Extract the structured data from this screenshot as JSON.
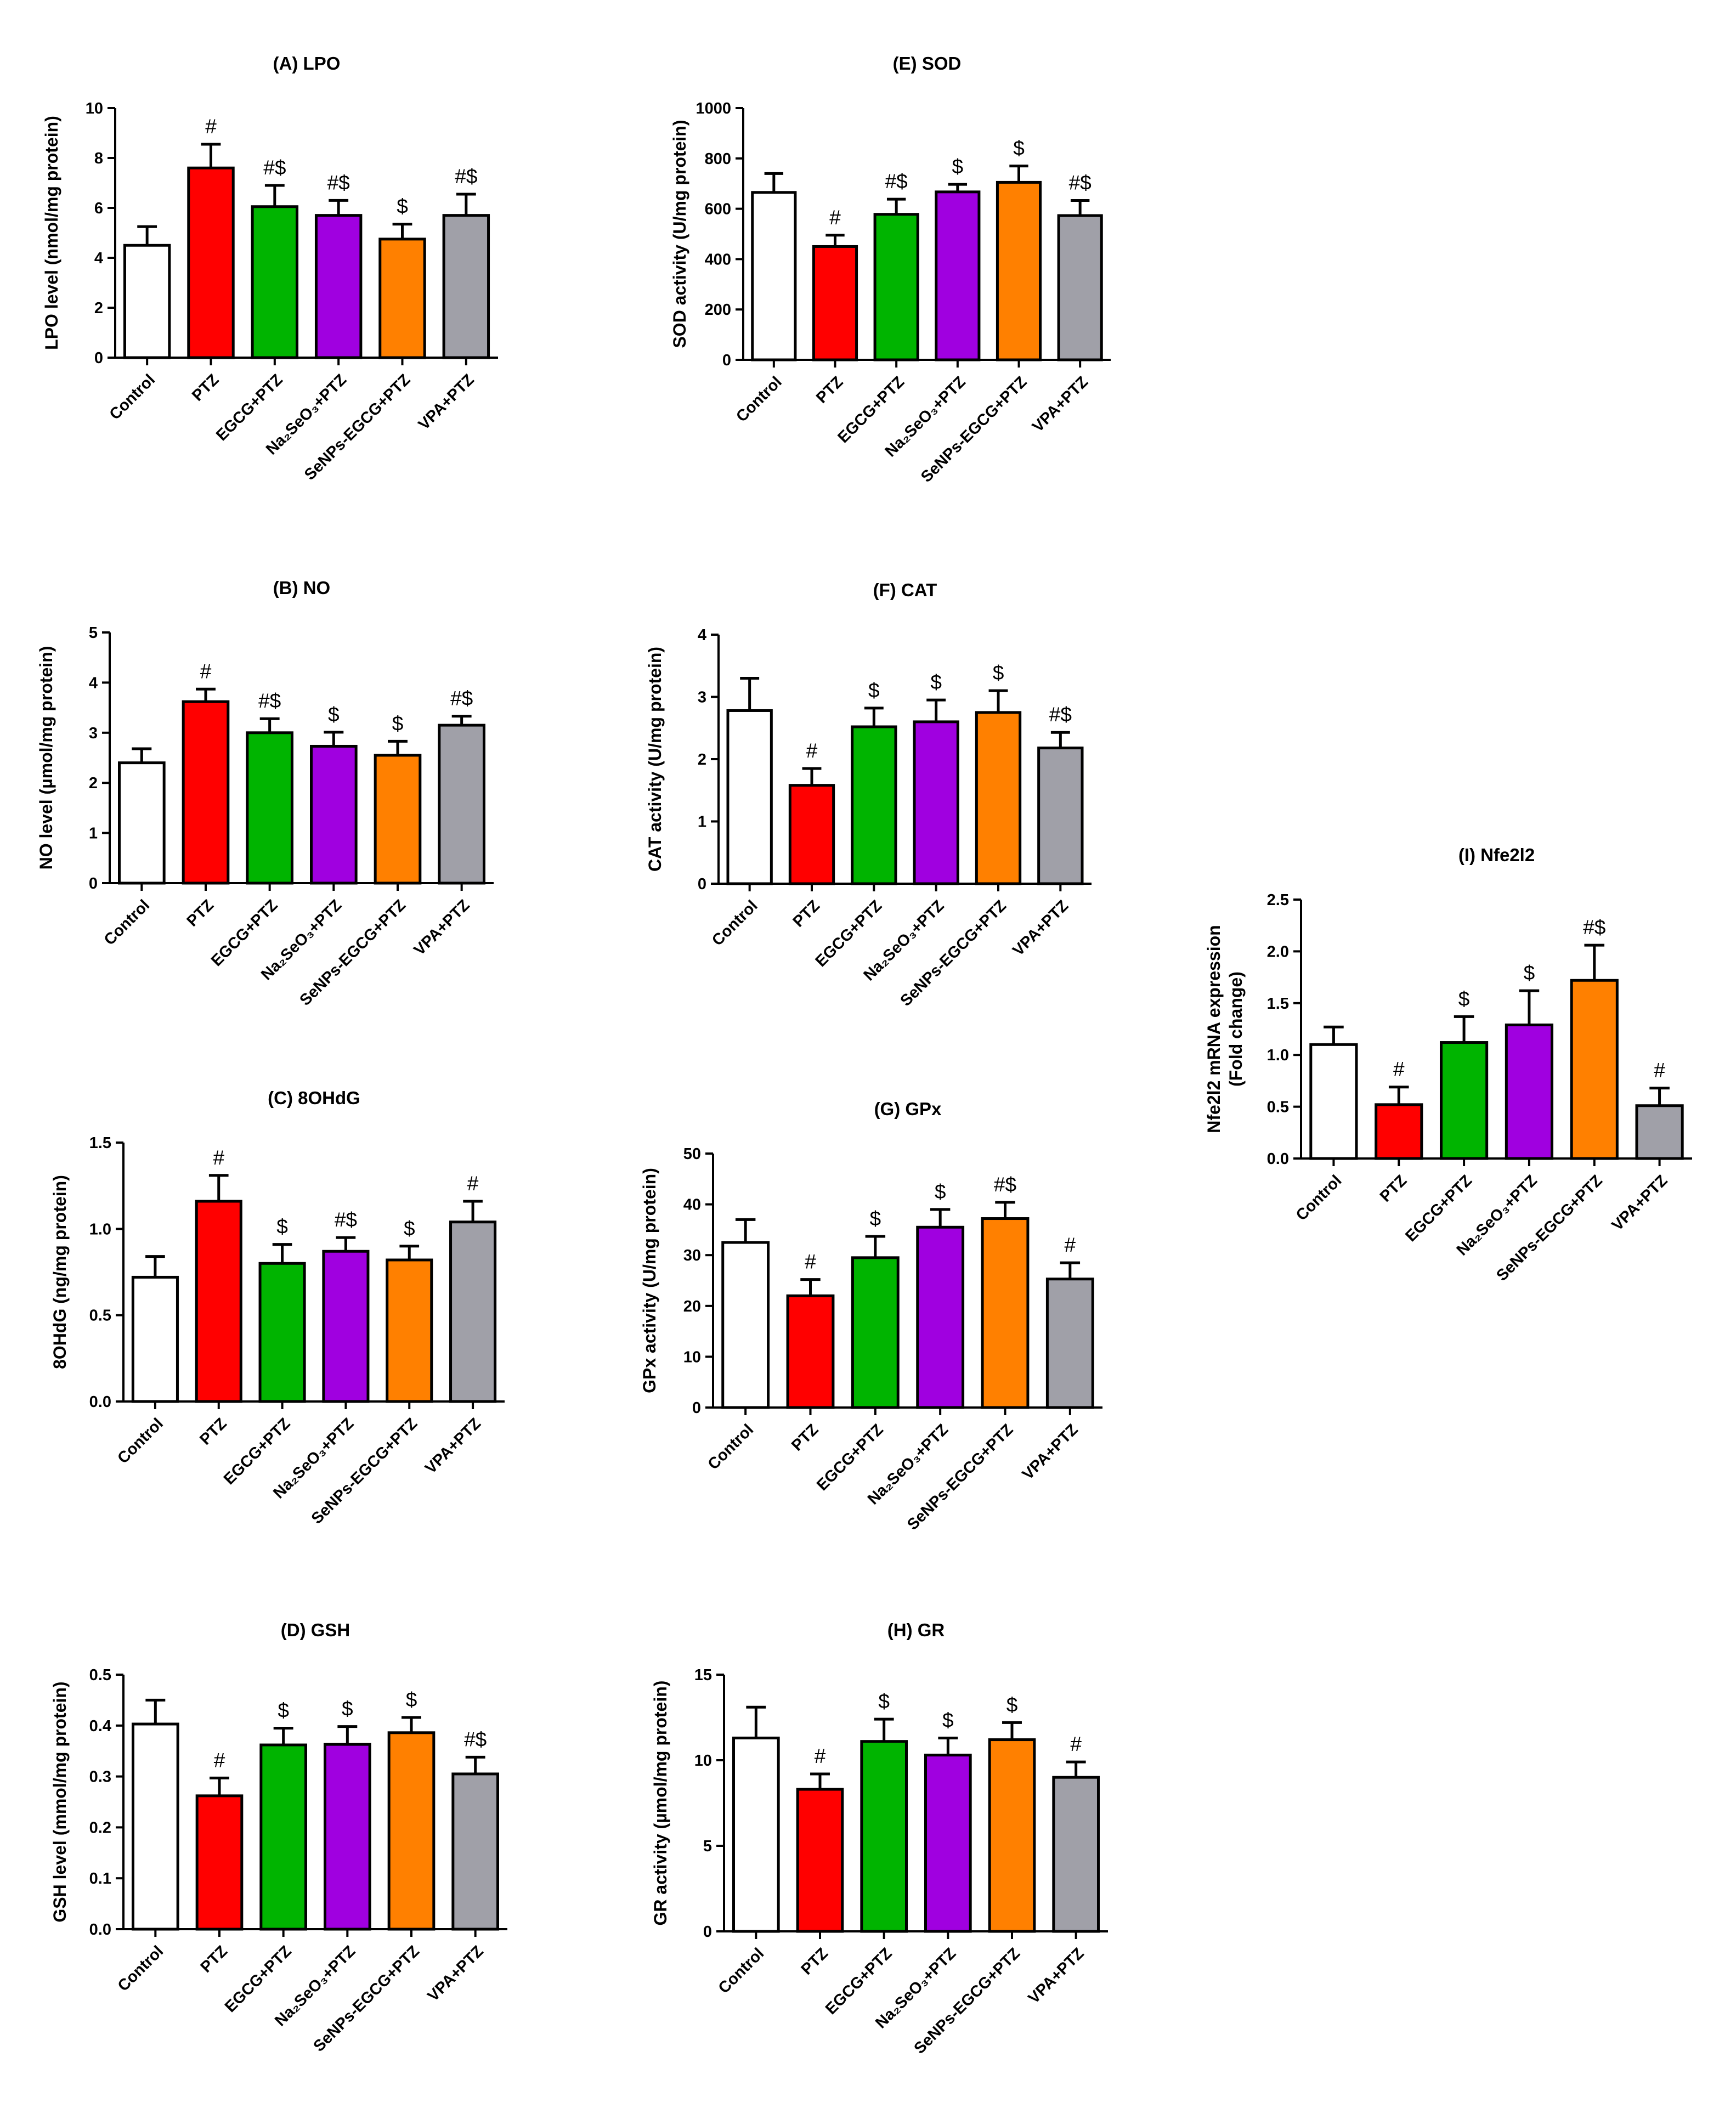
{
  "colors": [
    "#ffffff",
    "#ff0000",
    "#00b400",
    "#a000e0",
    "#ff8000",
    "#a0a0a8"
  ],
  "chart_data": [
    {
      "id": "A",
      "type": "bar",
      "title": "(A) LPO",
      "ylabel": "LPO level (nmol/mg protein)",
      "ylim": [
        0,
        10
      ],
      "yticks": [
        "0",
        "2",
        "4",
        "6",
        "8",
        "10"
      ],
      "categories": [
        "Control",
        "PTZ",
        "EGCG+PTZ",
        "Na2SeO3+PTZ",
        "SeNPs-EGCG+PTZ",
        "VPA+PTZ"
      ],
      "values": [
        4.5,
        7.6,
        6.05,
        5.7,
        4.75,
        5.7
      ],
      "errors": [
        0.75,
        0.95,
        0.85,
        0.6,
        0.6,
        0.85
      ],
      "significance": [
        "",
        "#",
        "#$",
        "#$",
        "$",
        "#$"
      ]
    },
    {
      "id": "B",
      "type": "bar",
      "title": "(B) NO",
      "ylabel": "NO level (µmol/mg protein)",
      "ylim": [
        0,
        5
      ],
      "yticks": [
        "0",
        "1",
        "2",
        "3",
        "4",
        "5"
      ],
      "categories": [
        "Control",
        "PTZ",
        "EGCG+PTZ",
        "Na2SeO3+PTZ",
        "SeNPs-EGCG+PTZ",
        "VPA+PTZ"
      ],
      "values": [
        2.4,
        3.62,
        3.0,
        2.73,
        2.55,
        3.15
      ],
      "errors": [
        0.28,
        0.25,
        0.28,
        0.28,
        0.28,
        0.18
      ],
      "significance": [
        "",
        "#",
        "#$",
        "$",
        "$",
        "#$"
      ]
    },
    {
      "id": "C",
      "type": "bar",
      "title": "(C) 8OHdG",
      "ylabel": "8OHdG (ng/mg protein)",
      "ylim": [
        0,
        1.5
      ],
      "yticks": [
        "0.0",
        "0.5",
        "1.0",
        "1.5"
      ],
      "categories": [
        "Control",
        "PTZ",
        "EGCG+PTZ",
        "Na2SeO3+PTZ",
        "SeNPs-EGCG+PTZ",
        "VPA+PTZ"
      ],
      "values": [
        0.72,
        1.16,
        0.8,
        0.87,
        0.82,
        1.04
      ],
      "errors": [
        0.12,
        0.15,
        0.11,
        0.08,
        0.08,
        0.12
      ],
      "significance": [
        "",
        "#",
        "$",
        "#$",
        "$",
        "#"
      ]
    },
    {
      "id": "D",
      "type": "bar",
      "title": "(D) GSH",
      "ylabel": "GSH level (mmol/mg protein)",
      "ylim": [
        0,
        0.5
      ],
      "yticks": [
        "0.0",
        "0.1",
        "0.2",
        "0.3",
        "0.4",
        "0.5"
      ],
      "categories": [
        "Control",
        "PTZ",
        "EGCG+PTZ",
        "Na2SeO3+PTZ",
        "SeNPs-EGCG+PTZ",
        "VPA+PTZ"
      ],
      "values": [
        0.403,
        0.262,
        0.362,
        0.363,
        0.386,
        0.305
      ],
      "errors": [
        0.047,
        0.035,
        0.033,
        0.035,
        0.03,
        0.033
      ],
      "significance": [
        "",
        "#",
        "$",
        "$",
        "$",
        "#$"
      ]
    },
    {
      "id": "E",
      "type": "bar",
      "title": "(E) SOD",
      "ylabel": "SOD activity (U/mg protein)",
      "ylim": [
        0,
        1000
      ],
      "yticks": [
        "0",
        "200",
        "400",
        "600",
        "800",
        "1000"
      ],
      "categories": [
        "Control",
        "PTZ",
        "EGCG+PTZ",
        "Na2SeO3+PTZ",
        "SeNPs-EGCG+PTZ",
        "VPA+PTZ"
      ],
      "values": [
        665,
        450,
        578,
        667,
        705,
        573
      ],
      "errors": [
        75,
        45,
        60,
        30,
        65,
        60
      ],
      "significance": [
        "",
        "#",
        "#$",
        "$",
        "$",
        "#$"
      ]
    },
    {
      "id": "F",
      "type": "bar",
      "title": "(F) CAT",
      "ylabel": "CAT activity (U/mg protein)",
      "ylim": [
        0,
        4
      ],
      "yticks": [
        "0",
        "1",
        "2",
        "3",
        "4"
      ],
      "categories": [
        "Control",
        "PTZ",
        "EGCG+PTZ",
        "Na2SeO3+PTZ",
        "SeNPs-EGCG+PTZ",
        "VPA+PTZ"
      ],
      "values": [
        2.78,
        1.58,
        2.52,
        2.6,
        2.75,
        2.18
      ],
      "errors": [
        0.52,
        0.27,
        0.3,
        0.35,
        0.35,
        0.25
      ],
      "significance": [
        "",
        "#",
        "$",
        "$",
        "$",
        "#$"
      ]
    },
    {
      "id": "G",
      "type": "bar",
      "title": "(G) GPx",
      "ylabel": "GPx activity (U/mg protein)",
      "ylim": [
        0,
        50
      ],
      "yticks": [
        "0",
        "10",
        "20",
        "30",
        "40",
        "50"
      ],
      "categories": [
        "Control",
        "PTZ",
        "EGCG+PTZ",
        "Na2SeO3+PTZ",
        "SeNPs-EGCG+PTZ",
        "VPA+PTZ"
      ],
      "values": [
        32.5,
        22.0,
        29.5,
        35.5,
        37.2,
        25.3
      ],
      "errors": [
        4.5,
        3.2,
        4.2,
        3.5,
        3.2,
        3.2
      ],
      "significance": [
        "",
        "#",
        "$",
        "$",
        "#$",
        "#"
      ]
    },
    {
      "id": "H",
      "type": "bar",
      "title": "(H) GR",
      "ylabel": "GR activity (µmol/mg protein)",
      "ylim": [
        0,
        15
      ],
      "yticks": [
        "0",
        "5",
        "10",
        "15"
      ],
      "categories": [
        "Control",
        "PTZ",
        "EGCG+PTZ",
        "Na2SeO3+PTZ",
        "SeNPs-EGCG+PTZ",
        "VPA+PTZ"
      ],
      "values": [
        11.3,
        8.3,
        11.1,
        10.3,
        11.2,
        9.0
      ],
      "errors": [
        1.8,
        0.9,
        1.3,
        1.0,
        1.0,
        0.9
      ],
      "significance": [
        "",
        "#",
        "$",
        "$",
        "$",
        "#"
      ]
    },
    {
      "id": "I",
      "type": "bar",
      "title": "(I) Nfe2l2",
      "ylabel": "Nfe2l2 mRNA expression",
      "ylabel2": "(Fold change)",
      "ylim": [
        0,
        2.5
      ],
      "yticks": [
        "0.0",
        "0.5",
        "1.0",
        "1.5",
        "2.0",
        "2.5"
      ],
      "categories": [
        "Control",
        "PTZ",
        "EGCG+PTZ",
        "Na2SeO3+PTZ",
        "SeNPs-EGCG+PTZ",
        "VPA+PTZ"
      ],
      "values": [
        1.1,
        0.52,
        1.12,
        1.29,
        1.72,
        0.51
      ],
      "errors": [
        0.17,
        0.17,
        0.25,
        0.33,
        0.34,
        0.17
      ],
      "significance": [
        "",
        "#",
        "$",
        "$",
        "#$",
        "#"
      ]
    }
  ]
}
